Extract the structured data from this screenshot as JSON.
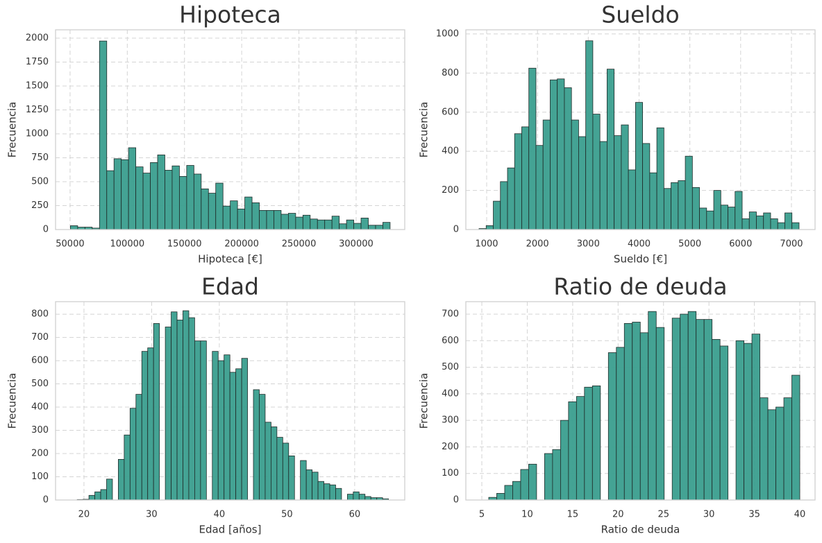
{
  "chart_data": [
    {
      "type": "histogram",
      "title": "Hipoteca",
      "xlabel": "Hipoteca [€]",
      "ylabel": "Frecuencia",
      "color": "#3a9e8e",
      "edgecolor": "#1f2a28",
      "grid": true,
      "bins": [
        50300,
        56650,
        63000,
        69350,
        75700,
        82050,
        88400,
        94750,
        101100,
        107450,
        113800,
        120150,
        126500,
        132850,
        139200,
        145550,
        151900,
        158250,
        164600,
        170950,
        177300,
        183650,
        190000,
        196350,
        202700,
        209050,
        215400,
        221750,
        228100,
        234450,
        240800,
        247150,
        253500,
        259850,
        266200,
        272550,
        278900,
        285250,
        291600,
        297950,
        304300,
        310650,
        317000,
        323350,
        329700
      ],
      "values": [
        40,
        25,
        25,
        15,
        1970,
        615,
        740,
        730,
        855,
        655,
        590,
        700,
        780,
        620,
        665,
        555,
        670,
        580,
        425,
        380,
        485,
        245,
        300,
        215,
        340,
        280,
        200,
        200,
        200,
        160,
        170,
        130,
        150,
        110,
        100,
        100,
        140,
        60,
        100,
        65,
        120,
        45,
        45,
        75
      ],
      "xlim": [
        37300,
        342500
      ],
      "ylim": [
        0,
        2087
      ],
      "xticks": [
        50000,
        100000,
        150000,
        200000,
        250000,
        300000
      ],
      "yticks": [
        0,
        250,
        500,
        750,
        1000,
        1250,
        1500,
        1750,
        2000
      ]
    },
    {
      "type": "histogram",
      "title": "Sueldo",
      "xlabel": "Sueldo [€]",
      "ylabel": "Frecuencia",
      "color": "#3a9e8e",
      "edgecolor": "#1f2a28",
      "grid": true,
      "bins": [
        850,
        990,
        1130,
        1270,
        1410,
        1550,
        1690,
        1830,
        1970,
        2110,
        2250,
        2390,
        2530,
        2670,
        2810,
        2950,
        3090,
        3230,
        3370,
        3510,
        3650,
        3790,
        3930,
        4070,
        4210,
        4350,
        4490,
        4630,
        4770,
        4910,
        5050,
        5190,
        5330,
        5470,
        5610,
        5750,
        5890,
        6030,
        6170,
        6310,
        6450,
        6590,
        6730,
        6870,
        7010,
        7150
      ],
      "values": [
        5,
        20,
        145,
        245,
        315,
        490,
        525,
        825,
        430,
        560,
        765,
        770,
        725,
        560,
        475,
        965,
        590,
        450,
        820,
        480,
        535,
        305,
        650,
        440,
        290,
        520,
        210,
        240,
        250,
        375,
        215,
        110,
        95,
        200,
        125,
        115,
        195,
        55,
        90,
        70,
        85,
        55,
        35,
        85,
        35
      ],
      "xlim": [
        590,
        7465
      ],
      "ylim": [
        0,
        1021
      ],
      "xticks": [
        1000,
        2000,
        3000,
        4000,
        5000,
        6000,
        7000
      ],
      "yticks": [
        0,
        200,
        400,
        600,
        800,
        1000
      ]
    },
    {
      "type": "histogram",
      "title": "Edad",
      "xlabel": "Edad [años]",
      "ylabel": "Frecuencia",
      "color": "#3a9e8e",
      "edgecolor": "#1f2a28",
      "grid": true,
      "bins": [
        19,
        19.868,
        20.736,
        21.604,
        22.472,
        23.34,
        24.208,
        25.075,
        25.943,
        26.811,
        27.679,
        28.547,
        29.415,
        30.283,
        31.151,
        32.019,
        32.887,
        33.755,
        34.623,
        35.491,
        36.358,
        37.226,
        38.094,
        38.962,
        39.83,
        40.698,
        41.566,
        42.434,
        43.302,
        44.17,
        45.038,
        45.906,
        46.774,
        47.642,
        48.509,
        49.377,
        50.245,
        51.113,
        51.981,
        52.849,
        53.717,
        54.585,
        55.453,
        56.321,
        57.189,
        58.057,
        58.925,
        59.792,
        60.66,
        61.528,
        62.396,
        63.264,
        64.132,
        65
      ],
      "values": [
        2,
        3,
        20,
        35,
        45,
        90,
        0,
        175,
        280,
        395,
        455,
        640,
        655,
        760,
        0,
        745,
        810,
        775,
        815,
        785,
        685,
        685,
        0,
        640,
        600,
        625,
        550,
        565,
        610,
        0,
        475,
        455,
        335,
        315,
        270,
        245,
        190,
        0,
        170,
        130,
        120,
        80,
        70,
        65,
        50,
        0,
        25,
        35,
        25,
        15,
        10,
        10,
        5
      ],
      "xlim": [
        15.8,
        67.4
      ],
      "ylim": [
        0,
        854
      ],
      "xticks": [
        20,
        30,
        40,
        50,
        60
      ],
      "yticks": [
        0,
        100,
        200,
        300,
        400,
        500,
        600,
        700,
        800
      ]
    },
    {
      "type": "histogram",
      "title": "Ratio de deuda",
      "xlabel": "Ratio de deuda",
      "ylabel": "Frecuencia",
      "color": "#3a9e8e",
      "edgecolor": "#1f2a28",
      "grid": true,
      "bins": [
        5.76,
        6.638,
        7.516,
        8.394,
        9.272,
        10.15,
        11.028,
        11.906,
        12.784,
        13.662,
        14.54,
        15.417,
        16.295,
        17.173,
        18.051,
        18.929,
        19.807,
        20.685,
        21.563,
        22.441,
        23.319,
        24.197,
        25.075,
        25.953,
        26.831,
        27.709,
        28.587,
        29.465,
        30.343,
        31.221,
        32.099,
        32.976,
        33.854,
        34.732,
        35.61,
        36.488,
        37.366,
        38.244,
        39.122,
        40
      ],
      "values": [
        10,
        25,
        55,
        70,
        115,
        135,
        0,
        175,
        190,
        300,
        370,
        390,
        425,
        430,
        0,
        555,
        575,
        665,
        670,
        630,
        710,
        650,
        0,
        685,
        700,
        710,
        680,
        680,
        605,
        580,
        0,
        600,
        590,
        625,
        385,
        340,
        350,
        385,
        470
      ],
      "xlim": [
        3.24,
        41.68
      ],
      "ylim": [
        0,
        747
      ],
      "xticks": [
        5,
        10,
        15,
        20,
        25,
        30,
        35,
        40
      ],
      "yticks": [
        0,
        100,
        200,
        300,
        400,
        500,
        600,
        700
      ]
    }
  ]
}
